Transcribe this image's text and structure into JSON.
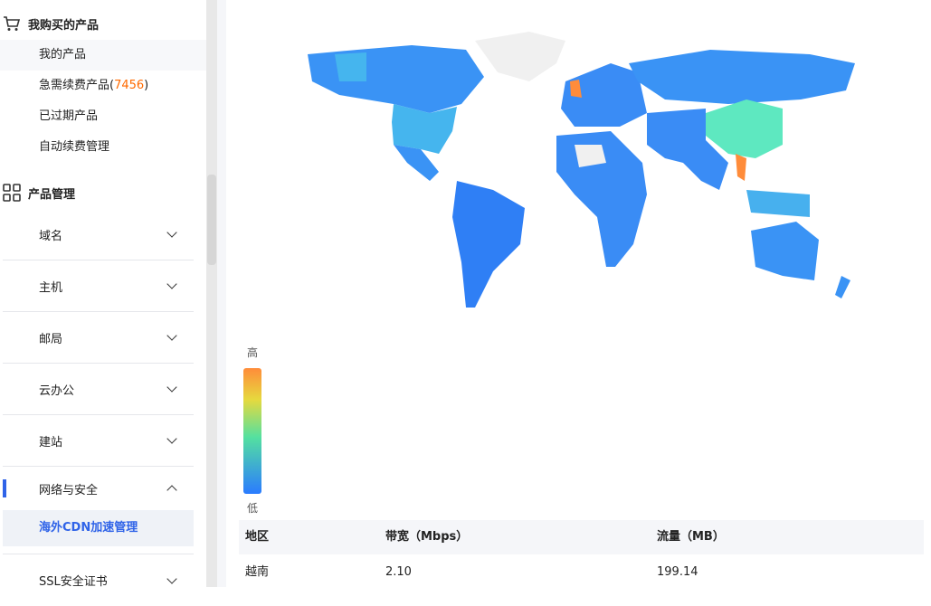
{
  "sidebar": {
    "purchased": {
      "title": "我购买的产品",
      "icon": "cart-icon",
      "items": [
        {
          "label": "我的产品"
        },
        {
          "label": "急需续费产品(",
          "count": "7456",
          "suffix": ")"
        },
        {
          "label": "已过期产品"
        },
        {
          "label": "自动续费管理"
        }
      ]
    },
    "management": {
      "title": "产品管理",
      "icon": "grid-icon",
      "groups": [
        {
          "label": "域名"
        },
        {
          "label": "主机"
        },
        {
          "label": "邮局"
        },
        {
          "label": "云办公"
        },
        {
          "label": "建站"
        },
        {
          "label": "网络与安全",
          "expanded": true,
          "children": [
            {
              "label": "海外CDN加速管理",
              "selected": true
            }
          ]
        },
        {
          "label": "SSL安全证书"
        }
      ]
    }
  },
  "map": {
    "legend_high": "高",
    "legend_low": "低",
    "colors": {
      "high": "#ff8c3a",
      "mid": "#54e0a0",
      "low": "#2a7bff",
      "none": "#f0f0f0"
    }
  },
  "table": {
    "headers": [
      "地区",
      "带宽（Mbps）",
      "流量（MB）"
    ],
    "rows": [
      [
        "越南",
        "2.10",
        "199.14"
      ]
    ]
  }
}
